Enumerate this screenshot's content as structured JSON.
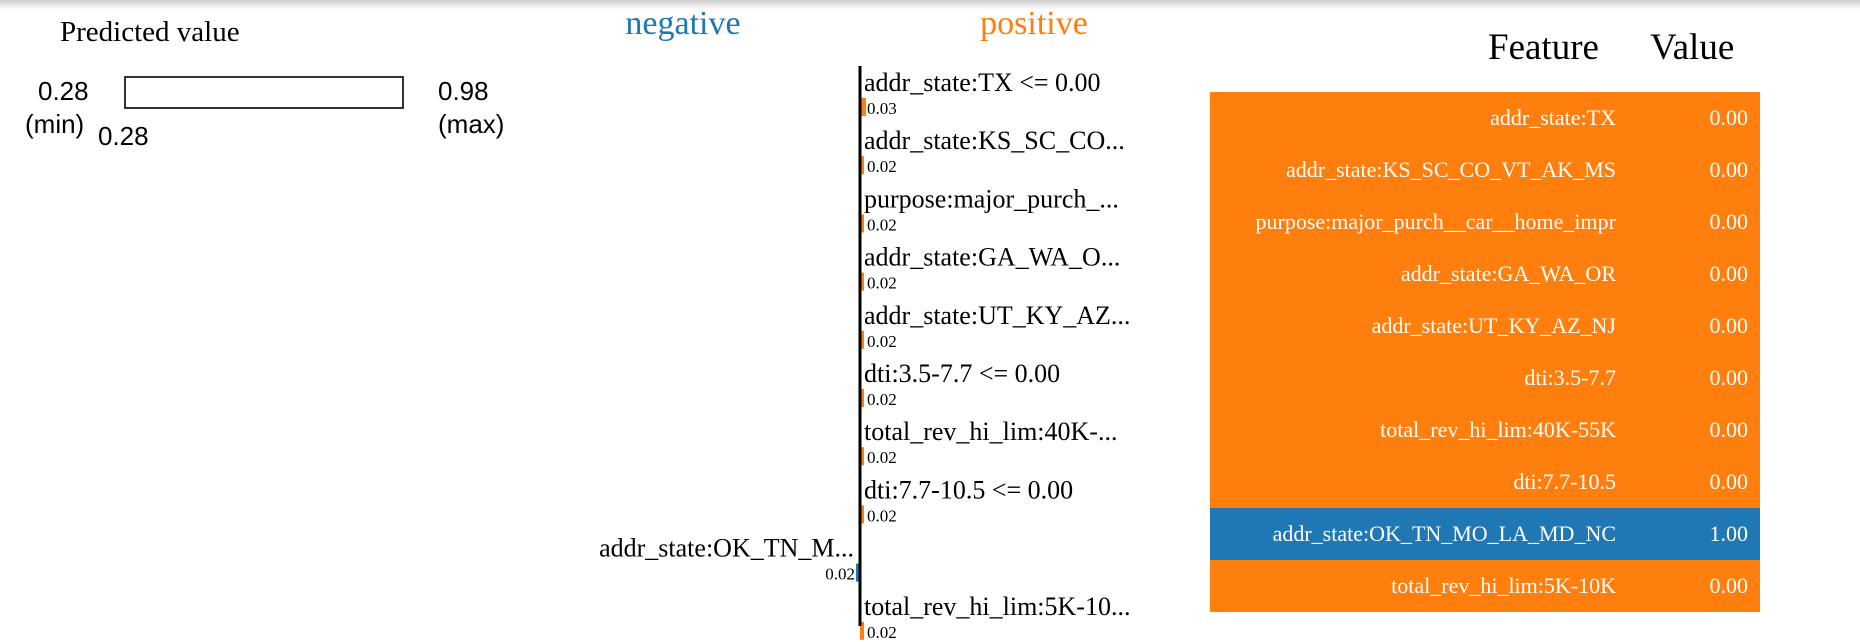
{
  "predicted": {
    "title": "Predicted value",
    "min": 0.28,
    "min_text": "0.28",
    "min_label": "(min)",
    "max": 0.98,
    "max_text": "0.98",
    "max_label": "(max)",
    "value": 0.28,
    "value_text": "0.28"
  },
  "chart_data": {
    "type": "bar",
    "legend": {
      "negative": "negative",
      "positive": "positive"
    },
    "colors": {
      "negative": "#1f77b4",
      "positive": "#ff7f0e"
    },
    "bars": [
      {
        "label": "addr_state:TX <= 0.00",
        "value": 0.03,
        "value_text": "0.03",
        "sign": "positive"
      },
      {
        "label": "addr_state:KS_SC_CO...",
        "value": 0.02,
        "value_text": "0.02",
        "sign": "positive"
      },
      {
        "label": "purpose:major_purch_...",
        "value": 0.02,
        "value_text": "0.02",
        "sign": "positive"
      },
      {
        "label": "addr_state:GA_WA_O...",
        "value": 0.02,
        "value_text": "0.02",
        "sign": "positive"
      },
      {
        "label": "addr_state:UT_KY_AZ...",
        "value": 0.02,
        "value_text": "0.02",
        "sign": "positive"
      },
      {
        "label": "dti:3.5-7.7 <= 0.00",
        "value": 0.02,
        "value_text": "0.02",
        "sign": "positive"
      },
      {
        "label": "total_rev_hi_lim:40K-...",
        "value": 0.02,
        "value_text": "0.02",
        "sign": "positive"
      },
      {
        "label": "dti:7.7-10.5 <= 0.00",
        "value": 0.02,
        "value_text": "0.02",
        "sign": "positive"
      },
      {
        "label": "addr_state:OK_TN_M...",
        "value": 0.02,
        "value_text": "0.02",
        "sign": "negative"
      },
      {
        "label": "total_rev_hi_lim:5K-10...",
        "value": 0.02,
        "value_text": "0.02",
        "sign": "positive"
      }
    ]
  },
  "table": {
    "header_feature": "Feature",
    "header_value": "Value",
    "rows": [
      {
        "feature": "addr_state:TX",
        "value": "0.00",
        "sign": "positive"
      },
      {
        "feature": "addr_state:KS_SC_CO_VT_AK_MS",
        "value": "0.00",
        "sign": "positive"
      },
      {
        "feature": "purpose:major_purch__car__home_impr",
        "value": "0.00",
        "sign": "positive"
      },
      {
        "feature": "addr_state:GA_WA_OR",
        "value": "0.00",
        "sign": "positive"
      },
      {
        "feature": "addr_state:UT_KY_AZ_NJ",
        "value": "0.00",
        "sign": "positive"
      },
      {
        "feature": "dti:3.5-7.7",
        "value": "0.00",
        "sign": "positive"
      },
      {
        "feature": "total_rev_hi_lim:40K-55K",
        "value": "0.00",
        "sign": "positive"
      },
      {
        "feature": "dti:7.7-10.5",
        "value": "0.00",
        "sign": "positive"
      },
      {
        "feature": "addr_state:OK_TN_MO_LA_MD_NC",
        "value": "1.00",
        "sign": "negative"
      },
      {
        "feature": "total_rev_hi_lim:5K-10K",
        "value": "0.00",
        "sign": "positive"
      }
    ]
  }
}
